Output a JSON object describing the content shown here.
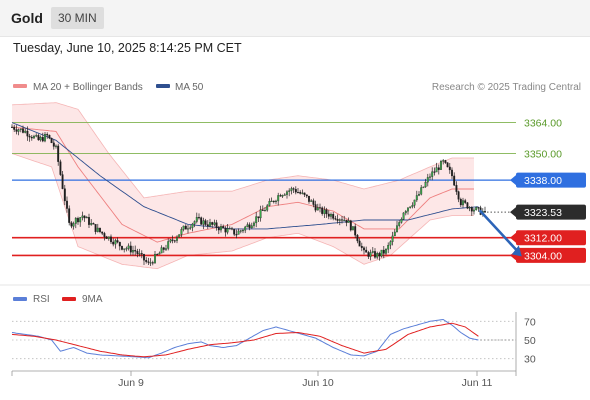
{
  "header": {
    "symbol": "Gold",
    "timeframe": "30 MIN",
    "datetime": "Tuesday, June 10, 2025 8:14:25 PM CET"
  },
  "legend": {
    "bollinger_label": "MA 20 + Bollinger Bands",
    "ma50_label": "MA 50",
    "credit": "Research © 2025 Trading Central",
    "colors": {
      "bollinger": "#f08c8c",
      "ma50": "#2f4f8f"
    }
  },
  "chart_data": [
    {
      "type": "candlestick",
      "title": "",
      "xlabel": "",
      "ylabel": "",
      "ylim": [
        3292,
        3376
      ],
      "x_ticks": [
        "Jun 9",
        "Jun 10",
        "Jun 11"
      ],
      "last_price": "3323.53",
      "levels": [
        {
          "label": "3364.00",
          "value": 3364.0,
          "role": "resistance",
          "color": "#7fb24e"
        },
        {
          "label": "3350.00",
          "value": 3350.0,
          "role": "resistance",
          "color": "#7fb24e"
        },
        {
          "label": "3338.00",
          "value": 3338.0,
          "role": "pivot",
          "color": "#2f6fe0"
        },
        {
          "label": "3312.00",
          "value": 3312.0,
          "role": "support",
          "color": "#e02020"
        },
        {
          "label": "3304.00",
          "value": 3304.0,
          "role": "support",
          "color": "#e02020"
        }
      ],
      "close_path": [
        [
          0,
          3362
        ],
        [
          6,
          3360
        ],
        [
          12,
          3356
        ],
        [
          16,
          3358
        ],
        [
          20,
          3352
        ],
        [
          26,
          3318
        ],
        [
          32,
          3322
        ],
        [
          38,
          3316
        ],
        [
          44,
          3312
        ],
        [
          50,
          3308
        ],
        [
          56,
          3306
        ],
        [
          62,
          3300
        ],
        [
          66,
          3304
        ],
        [
          72,
          3310
        ],
        [
          78,
          3316
        ],
        [
          84,
          3320
        ],
        [
          90,
          3318
        ],
        [
          96,
          3316
        ],
        [
          102,
          3314
        ],
        [
          108,
          3318
        ],
        [
          116,
          3326
        ],
        [
          122,
          3332
        ],
        [
          128,
          3334
        ],
        [
          134,
          3330
        ],
        [
          140,
          3324
        ],
        [
          146,
          3322
        ],
        [
          152,
          3320
        ],
        [
          156,
          3314
        ],
        [
          160,
          3305
        ],
        [
          166,
          3304
        ],
        [
          170,
          3306
        ],
        [
          174,
          3314
        ],
        [
          178,
          3324
        ],
        [
          184,
          3330
        ],
        [
          190,
          3340
        ],
        [
          196,
          3346
        ],
        [
          200,
          3340
        ],
        [
          204,
          3328
        ],
        [
          208,
          3326
        ],
        [
          212,
          3324
        ],
        [
          215,
          3323.53
        ]
      ],
      "bollinger": {
        "upper": [
          [
            0,
            3372
          ],
          [
            20,
            3373
          ],
          [
            30,
            3370
          ],
          [
            44,
            3350
          ],
          [
            60,
            3330
          ],
          [
            80,
            3333
          ],
          [
            100,
            3333
          ],
          [
            116,
            3338
          ],
          [
            130,
            3340
          ],
          [
            146,
            3338
          ],
          [
            160,
            3334
          ],
          [
            176,
            3338
          ],
          [
            190,
            3344
          ],
          [
            200,
            3348
          ],
          [
            210,
            3348
          ]
        ],
        "lower": [
          [
            0,
            3350
          ],
          [
            18,
            3344
          ],
          [
            30,
            3308
          ],
          [
            50,
            3300
          ],
          [
            66,
            3298
          ],
          [
            80,
            3304
          ],
          [
            100,
            3306
          ],
          [
            116,
            3312
          ],
          [
            130,
            3314
          ],
          [
            146,
            3308
          ],
          [
            160,
            3300
          ],
          [
            172,
            3304
          ],
          [
            190,
            3320
          ],
          [
            200,
            3322
          ],
          [
            210,
            3322
          ]
        ],
        "middle": [
          [
            0,
            3362
          ],
          [
            20,
            3360
          ],
          [
            30,
            3344
          ],
          [
            50,
            3318
          ],
          [
            66,
            3310
          ],
          [
            80,
            3314
          ],
          [
            100,
            3318
          ],
          [
            116,
            3326
          ],
          [
            130,
            3328
          ],
          [
            146,
            3324
          ],
          [
            160,
            3316
          ],
          [
            176,
            3316
          ],
          [
            190,
            3330
          ],
          [
            200,
            3334
          ],
          [
            210,
            3334
          ]
        ]
      },
      "ma50": [
        [
          0,
          3364
        ],
        [
          20,
          3356
        ],
        [
          40,
          3340
        ],
        [
          60,
          3326
        ],
        [
          80,
          3318
        ],
        [
          100,
          3316
        ],
        [
          116,
          3316
        ],
        [
          140,
          3318
        ],
        [
          160,
          3320
        ],
        [
          180,
          3320
        ],
        [
          200,
          3325
        ],
        [
          212,
          3326
        ]
      ],
      "forecast_arrow": {
        "from": [
          212,
          3324
        ],
        "to": [
          224,
          3304
        ]
      }
    },
    {
      "type": "line",
      "title": "",
      "xlabel": "",
      "ylabel": "",
      "ylim": [
        20,
        80
      ],
      "y_ticks": [
        30,
        50,
        70
      ],
      "legend": {
        "rsi_label": "RSI",
        "ma9_label": "9MA",
        "colors": {
          "rsi": "#5b7fd8",
          "ma9": "#e02020"
        }
      },
      "series": [
        {
          "name": "RSI",
          "values": [
            [
              0,
              58
            ],
            [
              6,
              56
            ],
            [
              12,
              54
            ],
            [
              18,
              50
            ],
            [
              22,
              38
            ],
            [
              28,
              42
            ],
            [
              34,
              36
            ],
            [
              40,
              34
            ],
            [
              48,
              33
            ],
            [
              56,
              32
            ],
            [
              62,
              31
            ],
            [
              68,
              36
            ],
            [
              74,
              42
            ],
            [
              80,
              46
            ],
            [
              86,
              48
            ],
            [
              90,
              44
            ],
            [
              96,
              42
            ],
            [
              102,
              44
            ],
            [
              108,
              52
            ],
            [
              114,
              60
            ],
            [
              120,
              64
            ],
            [
              126,
              60
            ],
            [
              132,
              56
            ],
            [
              138,
              52
            ],
            [
              146,
              42
            ],
            [
              154,
              34
            ],
            [
              160,
              33
            ],
            [
              166,
              38
            ],
            [
              172,
              56
            ],
            [
              178,
              62
            ],
            [
              184,
              66
            ],
            [
              190,
              70
            ],
            [
              196,
              72
            ],
            [
              200,
              66
            ],
            [
              204,
              58
            ],
            [
              208,
              52
            ],
            [
              212,
              50
            ]
          ]
        },
        {
          "name": "9MA",
          "values": [
            [
              0,
              56
            ],
            [
              10,
              54
            ],
            [
              20,
              50
            ],
            [
              30,
              44
            ],
            [
              40,
              38
            ],
            [
              50,
              34
            ],
            [
              60,
              32
            ],
            [
              70,
              34
            ],
            [
              80,
              40
            ],
            [
              90,
              45
            ],
            [
              100,
              47
            ],
            [
              110,
              50
            ],
            [
              120,
              57
            ],
            [
              130,
              58
            ],
            [
              140,
              54
            ],
            [
              150,
              44
            ],
            [
              160,
              36
            ],
            [
              170,
              40
            ],
            [
              180,
              56
            ],
            [
              190,
              64
            ],
            [
              200,
              68
            ],
            [
              206,
              64
            ],
            [
              212,
              54
            ]
          ]
        }
      ]
    }
  ]
}
